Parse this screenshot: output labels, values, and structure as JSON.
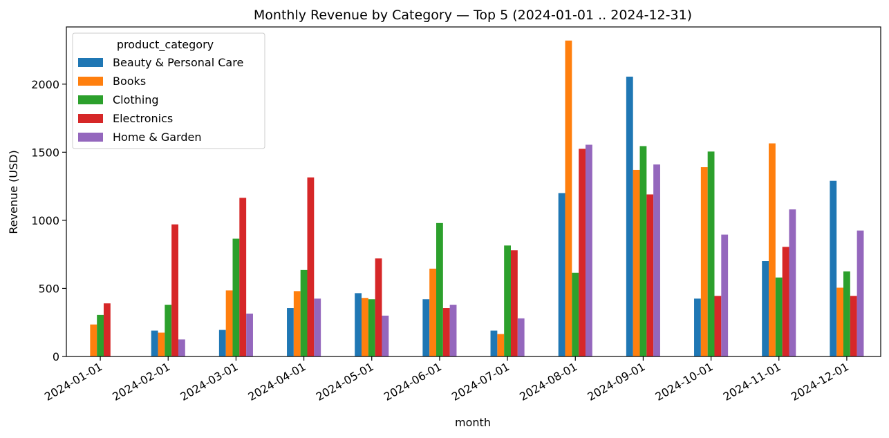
{
  "chart_data": {
    "type": "bar",
    "title": "Monthly Revenue by Category — Top 5 (2024-01-01 .. 2024-12-31)",
    "xlabel": "month",
    "ylabel": "Revenue (USD)",
    "ylim": [
      0,
      2420
    ],
    "yticks": [
      0,
      500,
      1000,
      1500,
      2000
    ],
    "grid": false,
    "legend_title": "product_category",
    "legend_position": "top-left",
    "categories": [
      "2024-01-01",
      "2024-02-01",
      "2024-03-01",
      "2024-04-01",
      "2024-05-01",
      "2024-06-01",
      "2024-07-01",
      "2024-08-01",
      "2024-09-01",
      "2024-10-01",
      "2024-11-01",
      "2024-12-01"
    ],
    "series": [
      {
        "name": "Beauty & Personal Care",
        "color": "#1f77b4",
        "values": [
          0,
          190,
          195,
          355,
          465,
          420,
          190,
          1200,
          2055,
          425,
          700,
          1290
        ]
      },
      {
        "name": "Books",
        "color": "#ff7f0e",
        "values": [
          235,
          175,
          485,
          480,
          430,
          645,
          165,
          2320,
          1370,
          1390,
          1565,
          505
        ]
      },
      {
        "name": "Clothing",
        "color": "#2ca02c",
        "values": [
          305,
          380,
          865,
          635,
          420,
          980,
          815,
          615,
          1545,
          1505,
          580,
          625
        ]
      },
      {
        "name": "Electronics",
        "color": "#d62728",
        "values": [
          390,
          970,
          1165,
          1315,
          720,
          355,
          780,
          1525,
          1190,
          445,
          805,
          445
        ]
      },
      {
        "name": "Home & Garden",
        "color": "#9467bd",
        "values": [
          0,
          125,
          315,
          425,
          300,
          380,
          280,
          1555,
          1410,
          895,
          1080,
          925
        ]
      }
    ]
  }
}
